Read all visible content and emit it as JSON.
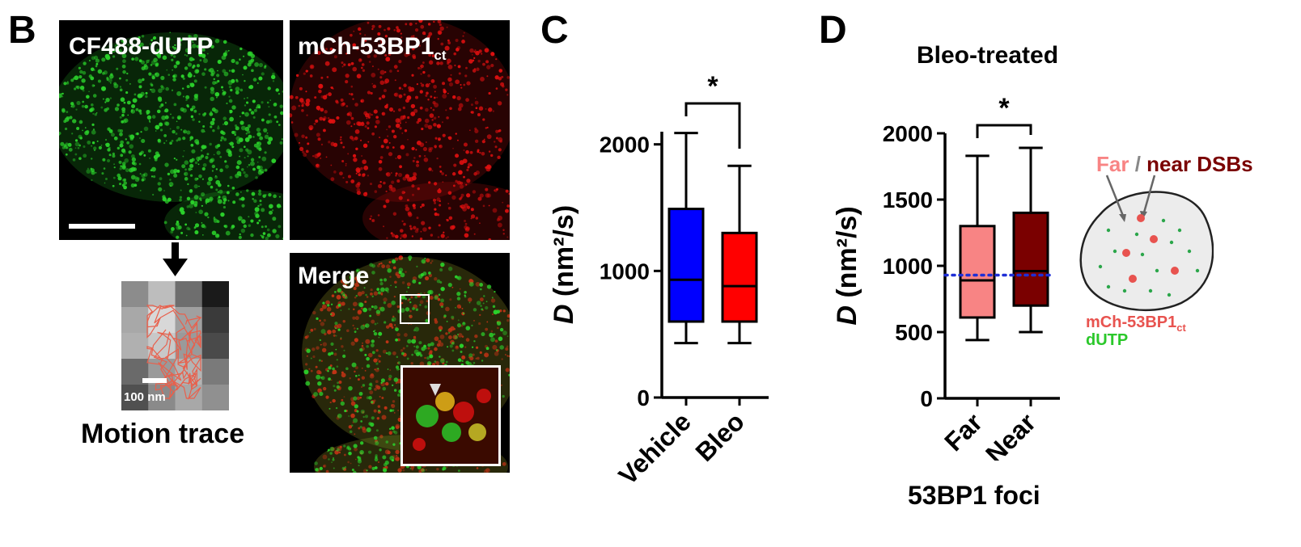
{
  "panel_b": {
    "letter": "B",
    "green_label": "CF488-dUTP",
    "red_label_main": "mCh-53BP1",
    "red_label_sub": "ct",
    "merge_label": "Merge",
    "trace_scale": "100 nm",
    "trace_caption": "Motion trace",
    "colors": {
      "green": "#2bd12b",
      "red": "#e01010",
      "trace": "#e8604c"
    }
  },
  "panel_c": {
    "letter": "C"
  },
  "panel_d": {
    "letter": "D",
    "title": "Bleo-treated",
    "xlabel": "53BP1 foci",
    "legend_far": "Far",
    "legend_sep": " / ",
    "legend_near": "near DSBs",
    "key_red_main": "mCh-53BP1",
    "key_red_sub": "ct",
    "key_green": "dUTP"
  },
  "chart_data": [
    {
      "type": "box",
      "panel": "C",
      "ylabel_italic": "D",
      "ylabel_rest": " (nm²/s)",
      "ylim": [
        0,
        2100
      ],
      "yticks": [
        0,
        1000,
        2000
      ],
      "categories": [
        "Vehicle",
        "Bleo"
      ],
      "boxes": [
        {
          "name": "Vehicle",
          "min": 430,
          "q1": 600,
          "median": 930,
          "q3": 1490,
          "max": 2090,
          "color": "#0000ff"
        },
        {
          "name": "Bleo",
          "min": 430,
          "q1": 600,
          "median": 880,
          "q3": 1300,
          "max": 1830,
          "color": "#ff0000"
        }
      ],
      "significance": "*"
    },
    {
      "type": "box",
      "panel": "D",
      "title": "Bleo-treated",
      "xlabel": "53BP1 foci",
      "ylabel_italic": "D",
      "ylabel_rest": " (nm²/s)",
      "ylim": [
        0,
        2000
      ],
      "yticks": [
        0,
        500,
        1000,
        1500,
        2000
      ],
      "categories": [
        "Far",
        "Near"
      ],
      "boxes": [
        {
          "name": "Far",
          "min": 440,
          "q1": 610,
          "median": 890,
          "q3": 1300,
          "max": 1830,
          "color": "#f88484"
        },
        {
          "name": "Near",
          "min": 500,
          "q1": 700,
          "median": 960,
          "q3": 1400,
          "max": 1890,
          "color": "#7a0000"
        }
      ],
      "reference_line": {
        "y": 930,
        "color": "#1f2fd6",
        "style": "dotted"
      },
      "significance": "*"
    }
  ]
}
